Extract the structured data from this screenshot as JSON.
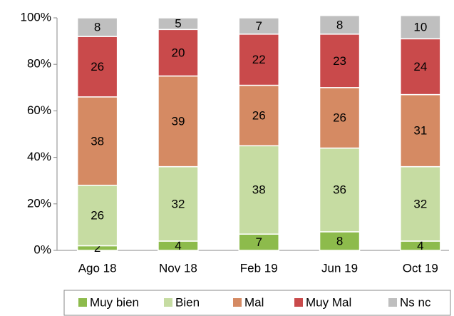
{
  "chart_data": {
    "type": "stacked_bar",
    "categories": [
      "Ago 18",
      "Nov 18",
      "Feb 19",
      "Jun 19",
      "Oct 19"
    ],
    "series": [
      {
        "name": "Muy bien",
        "color": "#8dbb4c",
        "values": [
          2,
          4,
          7,
          8,
          4
        ]
      },
      {
        "name": "Bien",
        "color": "#c6dca2",
        "values": [
          26,
          32,
          38,
          36,
          32
        ]
      },
      {
        "name": "Mal",
        "color": "#d58a63",
        "values": [
          38,
          39,
          26,
          26,
          31
        ]
      },
      {
        "name": "Muy Mal",
        "color": "#c94a4b",
        "values": [
          26,
          20,
          22,
          23,
          24
        ]
      },
      {
        "name": "Ns nc",
        "color": "#bfbfbf",
        "values": [
          8,
          5,
          7,
          8,
          10
        ]
      }
    ],
    "ylim": [
      0,
      100
    ],
    "yticks": [
      {
        "value": 0,
        "label": "0%"
      },
      {
        "value": 20,
        "label": "20%"
      },
      {
        "value": 40,
        "label": "40%"
      },
      {
        "value": 60,
        "label": "60%"
      },
      {
        "value": 80,
        "label": "80%"
      },
      {
        "value": 100,
        "label": "100%"
      }
    ],
    "legend": "bottom"
  }
}
